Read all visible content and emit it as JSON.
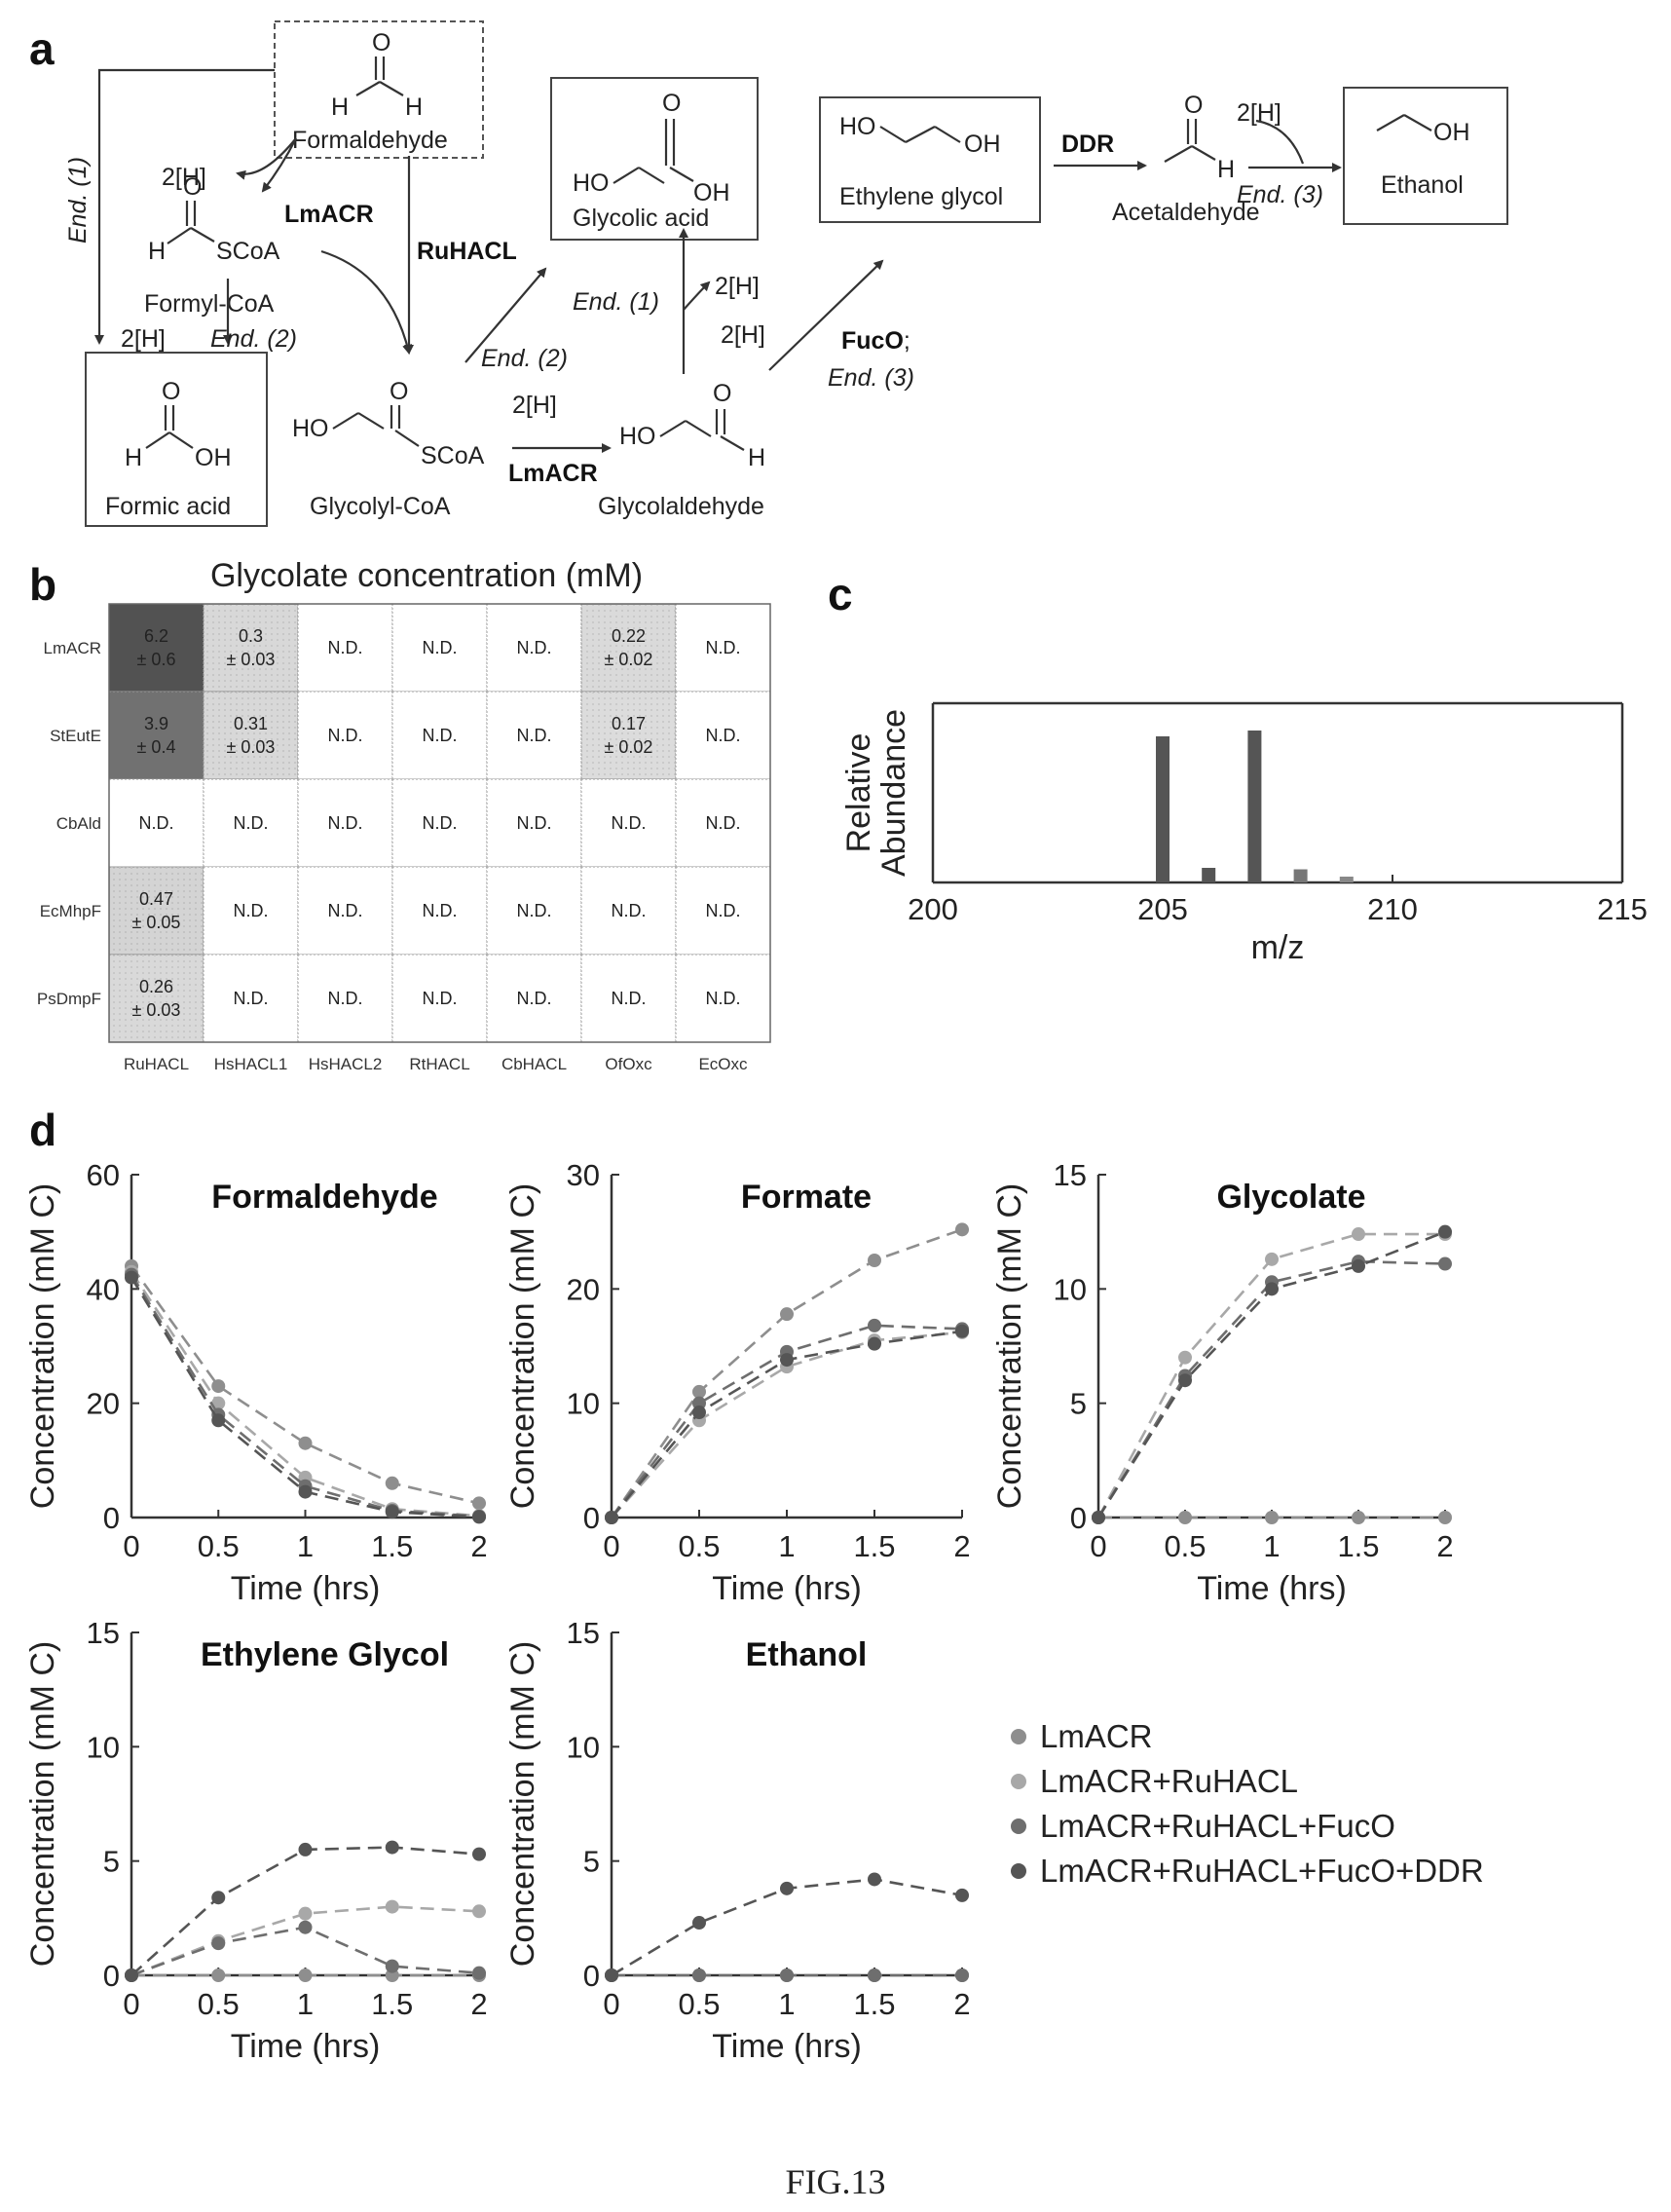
{
  "panel_labels": {
    "a": "a",
    "b": "b",
    "c": "c",
    "d": "d"
  },
  "figure_label": "FIG.13",
  "pathway": {
    "compounds": {
      "formaldehyde": "Formaldehyde",
      "formyl_coa": "Formyl-CoA",
      "formic_acid": "Formic acid",
      "glycolyl_coa": "Glycolyl-CoA",
      "glycolic_acid": "Glycolic acid",
      "glycolaldehyde": "Glycolaldehyde",
      "ethylene_glycol": "Ethylene glycol",
      "acetaldehyde": "Acetaldehyde",
      "ethanol": "Ethanol"
    },
    "atoms": {
      "O": "O",
      "H": "H",
      "HO": "HO",
      "OH": "OH",
      "SCoA": "SCoA"
    },
    "enzymes": {
      "lmacr": "LmACR",
      "ruhacl": "RuHACL",
      "fuco": "FucO",
      "fuco_sep": ";",
      "ddr": "DDR"
    },
    "reducing_equiv": "2[H]",
    "endogenous": {
      "end1": "End. (1)",
      "end2": "End. (2)",
      "end3": "End. (3)"
    }
  },
  "chart_data": [
    {
      "type": "heatmap",
      "title": "Glycolate concentration (mM)",
      "rows": [
        "LmACR",
        "StEutE",
        "CbAld",
        "EcMhpF",
        "PsDmpF"
      ],
      "columns": [
        "RuHACL",
        "HsHACL1",
        "HsHACL2",
        "RtHACL",
        "CbHACL",
        "OfOxc",
        "EcOxc"
      ],
      "cells": [
        [
          [
            "6.2",
            "± 0.6"
          ],
          [
            "0.3",
            "± 0.03"
          ],
          [
            "N.D."
          ],
          [
            "N.D."
          ],
          [
            "N.D."
          ],
          [
            "0.22",
            "± 0.02"
          ],
          [
            "N.D."
          ]
        ],
        [
          [
            "3.9",
            "± 0.4"
          ],
          [
            "0.31",
            "± 0.03"
          ],
          [
            "N.D."
          ],
          [
            "N.D."
          ],
          [
            "N.D."
          ],
          [
            "0.17",
            "± 0.02"
          ],
          [
            "N.D."
          ]
        ],
        [
          [
            "N.D."
          ],
          [
            "N.D."
          ],
          [
            "N.D."
          ],
          [
            "N.D."
          ],
          [
            "N.D."
          ],
          [
            "N.D."
          ],
          [
            "N.D."
          ]
        ],
        [
          [
            "0.47",
            "± 0.05"
          ],
          [
            "N.D."
          ],
          [
            "N.D."
          ],
          [
            "N.D."
          ],
          [
            "N.D."
          ],
          [
            "N.D."
          ],
          [
            "N.D."
          ]
        ],
        [
          [
            "0.26",
            "± 0.03"
          ],
          [
            "N.D."
          ],
          [
            "N.D."
          ],
          [
            "N.D."
          ],
          [
            "N.D."
          ],
          [
            "N.D."
          ],
          [
            "N.D."
          ]
        ]
      ],
      "values": [
        [
          6.2,
          0.3,
          0,
          0,
          0,
          0.22,
          0
        ],
        [
          3.9,
          0.31,
          0,
          0,
          0,
          0.17,
          0
        ],
        [
          0,
          0,
          0,
          0,
          0,
          0,
          0
        ],
        [
          0.47,
          0,
          0,
          0,
          0,
          0,
          0
        ],
        [
          0.26,
          0,
          0,
          0,
          0,
          0,
          0
        ]
      ]
    },
    {
      "type": "bar",
      "xlabel": "m/z",
      "ylabel": "Relative Abundance",
      "xlim": [
        200,
        215
      ],
      "xticks": [
        200,
        205,
        210,
        215
      ],
      "x": [
        205,
        206,
        207,
        208,
        209
      ],
      "values": [
        1.0,
        0.1,
        1.04,
        0.09,
        0.04
      ],
      "colors": [
        "#555555",
        "#555555",
        "#555555",
        "#777777",
        "#888888"
      ]
    },
    {
      "type": "line",
      "title": "Formaldehyde",
      "xlabel": "Time (hrs)",
      "ylabel": "Concentration (mM C)",
      "xlim": [
        0,
        2
      ],
      "ylim": [
        0,
        60
      ],
      "xticks": [
        0,
        0.5,
        1,
        1.5,
        2
      ],
      "xticklabels": [
        "0",
        "0.5",
        "1",
        "1.5",
        "2"
      ],
      "yticks": [
        0,
        20,
        40,
        60
      ],
      "yticklabels": [
        "0",
        "20",
        "40",
        "60"
      ],
      "x": [
        0,
        0.5,
        1,
        1.5,
        2
      ],
      "series": [
        {
          "values": [
            44,
            23,
            13,
            6,
            2.5
          ],
          "color": "#8e8e8e"
        },
        {
          "values": [
            43,
            20,
            7,
            1.5,
            0.3
          ],
          "color": "#a8a8a8"
        },
        {
          "values": [
            42.5,
            18,
            5.5,
            1.2,
            0.2
          ],
          "color": "#6e6e6e"
        },
        {
          "values": [
            42,
            17,
            4.5,
            1,
            0.1
          ],
          "color": "#555555"
        }
      ]
    },
    {
      "type": "line",
      "title": "Formate",
      "xlabel": "Time (hrs)",
      "ylabel": "Concentration (mM C)",
      "xlim": [
        0,
        2
      ],
      "ylim": [
        0,
        30
      ],
      "xticks": [
        0,
        0.5,
        1,
        1.5,
        2
      ],
      "xticklabels": [
        "0",
        "0.5",
        "1",
        "1.5",
        "2"
      ],
      "yticks": [
        0,
        10,
        20,
        30
      ],
      "yticklabels": [
        "0",
        "10",
        "20",
        "30"
      ],
      "x": [
        0,
        0.5,
        1,
        1.5,
        2
      ],
      "series": [
        {
          "values": [
            0,
            11,
            17.8,
            22.5,
            25.2
          ],
          "color": "#8e8e8e"
        },
        {
          "values": [
            0,
            8.5,
            13.2,
            15.5,
            16.2
          ],
          "color": "#a8a8a8"
        },
        {
          "values": [
            0,
            10,
            14.5,
            16.8,
            16.5
          ],
          "color": "#6e6e6e"
        },
        {
          "values": [
            0,
            9.2,
            13.8,
            15.2,
            16.3
          ],
          "color": "#555555"
        }
      ]
    },
    {
      "type": "line",
      "title": "Glycolate",
      "xlabel": "Time (hrs)",
      "ylabel": "Concentration (mM C)",
      "xlim": [
        0,
        2
      ],
      "ylim": [
        0,
        15
      ],
      "xticks": [
        0,
        0.5,
        1,
        1.5,
        2
      ],
      "xticklabels": [
        "0",
        "0.5",
        "1",
        "1.5",
        "2"
      ],
      "yticks": [
        0,
        5,
        10,
        15
      ],
      "yticklabels": [
        "0",
        "5",
        "10",
        "15"
      ],
      "x": [
        0,
        0.5,
        1,
        1.5,
        2
      ],
      "series": [
        {
          "values": [
            0,
            0,
            0,
            0,
            0
          ],
          "color": "#8e8e8e"
        },
        {
          "values": [
            0,
            7,
            11.3,
            12.4,
            12.4
          ],
          "color": "#a8a8a8"
        },
        {
          "values": [
            0,
            6.2,
            10.3,
            11.2,
            11.1
          ],
          "color": "#6e6e6e"
        },
        {
          "values": [
            0,
            6,
            10,
            11,
            12.5
          ],
          "color": "#555555"
        }
      ]
    },
    {
      "type": "line",
      "title": "Ethylene Glycol",
      "xlabel": "Time (hrs)",
      "ylabel": "Concentration (mM C)",
      "xlim": [
        0,
        2
      ],
      "ylim": [
        0,
        15
      ],
      "xticks": [
        0,
        0.5,
        1,
        1.5,
        2
      ],
      "xticklabels": [
        "0",
        "0.5",
        "1",
        "1.5",
        "2"
      ],
      "yticks": [
        0,
        5,
        10,
        15
      ],
      "yticklabels": [
        "0",
        "5",
        "10",
        "15"
      ],
      "x": [
        0,
        0.5,
        1,
        1.5,
        2
      ],
      "series": [
        {
          "values": [
            0,
            0,
            0,
            0,
            0
          ],
          "color": "#8e8e8e"
        },
        {
          "values": [
            0,
            1.5,
            2.7,
            3,
            2.8
          ],
          "color": "#a8a8a8"
        },
        {
          "values": [
            0,
            1.4,
            2.1,
            0.4,
            0.1
          ],
          "color": "#6e6e6e"
        },
        {
          "values": [
            0,
            3.4,
            5.5,
            5.6,
            5.3
          ],
          "color": "#555555"
        }
      ]
    },
    {
      "type": "line",
      "title": "Ethanol",
      "xlabel": "Time (hrs)",
      "ylabel": "Concentration (mM C)",
      "xlim": [
        0,
        2
      ],
      "ylim": [
        0,
        15
      ],
      "xticks": [
        0,
        0.5,
        1,
        1.5,
        2
      ],
      "xticklabels": [
        "0",
        "0.5",
        "1",
        "1.5",
        "2"
      ],
      "yticks": [
        0,
        5,
        10,
        15
      ],
      "yticklabels": [
        "0",
        "5",
        "10",
        "15"
      ],
      "x": [
        0,
        0.5,
        1,
        1.5,
        2
      ],
      "series": [
        {
          "values": [
            0,
            0,
            0,
            0,
            0
          ],
          "color": "#8e8e8e"
        },
        {
          "values": [
            0,
            0,
            0,
            0,
            0
          ],
          "color": "#a8a8a8"
        },
        {
          "values": [
            0,
            0,
            0,
            0,
            0
          ],
          "color": "#6e6e6e"
        },
        {
          "values": [
            0,
            2.3,
            3.8,
            4.2,
            3.5
          ],
          "color": "#555555"
        }
      ]
    }
  ],
  "legend": {
    "items": [
      {
        "label": "LmACR",
        "color": "#8e8e8e"
      },
      {
        "label": "LmACR+RuHACL",
        "color": "#a8a8a8"
      },
      {
        "label": "LmACR+RuHACL+FucO",
        "color": "#6e6e6e"
      },
      {
        "label": "LmACR+RuHACL+FucO+DDR",
        "color": "#555555"
      }
    ]
  }
}
